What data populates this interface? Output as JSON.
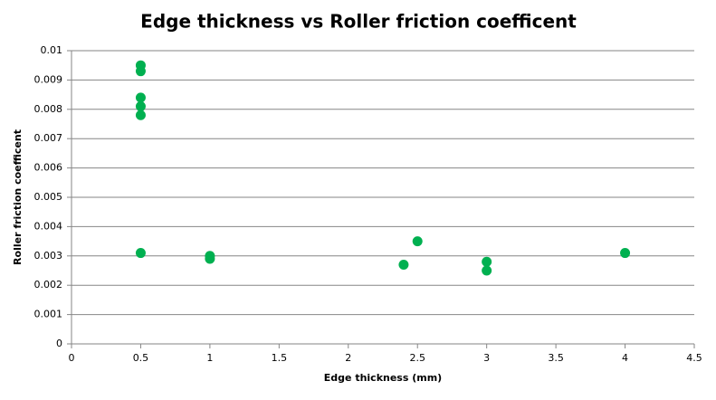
{
  "chart_data": {
    "type": "scatter",
    "title": "Edge thickness vs Roller friction coefficent",
    "x_label": "Edge thickness (mm)",
    "y_label": "Roller friction coefficent",
    "x": [
      0.5,
      0.5,
      0.5,
      0.5,
      0.5,
      0.5,
      1,
      1,
      2.4,
      2.5,
      3,
      3,
      4
    ],
    "values": [
      0.0095,
      0.0093,
      0.0084,
      0.0081,
      0.0078,
      0.0031,
      0.003,
      0.0029,
      0.0027,
      0.0035,
      0.0028,
      0.0025,
      0.0031
    ],
    "color": "#00b050",
    "xlim": [
      0,
      4.5
    ],
    "xticks": [
      0,
      0.5,
      1,
      1.5,
      2,
      2.5,
      3,
      3.5,
      4,
      4.5
    ],
    "ylim": [
      0,
      0.01
    ],
    "yticks": [
      0,
      0.001,
      0.002,
      0.003,
      0.004,
      0.005,
      0.006,
      0.007,
      0.008,
      0.009,
      0.01
    ],
    "grid": true
  }
}
